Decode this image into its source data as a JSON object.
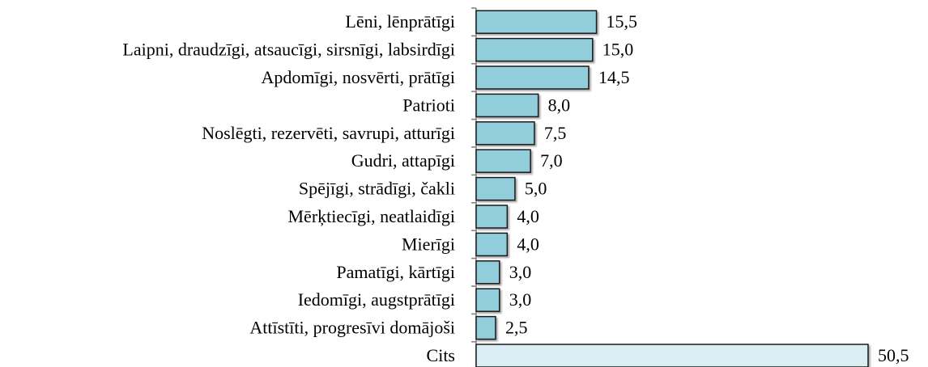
{
  "chart_data": {
    "type": "bar",
    "orientation": "horizontal",
    "categories": [
      "Lēni, lēnprātīgi",
      "Laipni, draudzīgi, atsaucīgi, sirsnīgi, labsirdīgi",
      "Apdomīgi, nosvērti, prātīgi",
      "Patrioti",
      "Noslēgti, rezervēti, savrupi, atturīgi",
      "Gudri, attapīgi",
      "Spējīgi, strādīgi, čakli",
      "Mērķtiecīgi, neatlaidīgi",
      "Mierīgi",
      "Pamatīgi, kārtīgi",
      "Iedomīgi, augstprātīgi",
      "Attīstīti, progresīvi domājoši",
      "Cits"
    ],
    "values": [
      15.5,
      15.0,
      14.5,
      8.0,
      7.5,
      7.0,
      5.0,
      4.0,
      4.0,
      3.0,
      3.0,
      2.5,
      50.5
    ],
    "value_labels": [
      "15,5",
      "15,0",
      "14,5",
      "8,0",
      "7,5",
      "7,0",
      "5,0",
      "4,0",
      "4,0",
      "3,0",
      "3,0",
      "2,5",
      "50,5"
    ],
    "colors": [
      "#92cddc",
      "#92cddc",
      "#92cddc",
      "#92cddc",
      "#92cddc",
      "#92cddc",
      "#92cddc",
      "#92cddc",
      "#92cddc",
      "#92cddc",
      "#92cddc",
      "#92cddc",
      "#daeef3"
    ],
    "xlim": [
      0,
      50.5
    ]
  }
}
